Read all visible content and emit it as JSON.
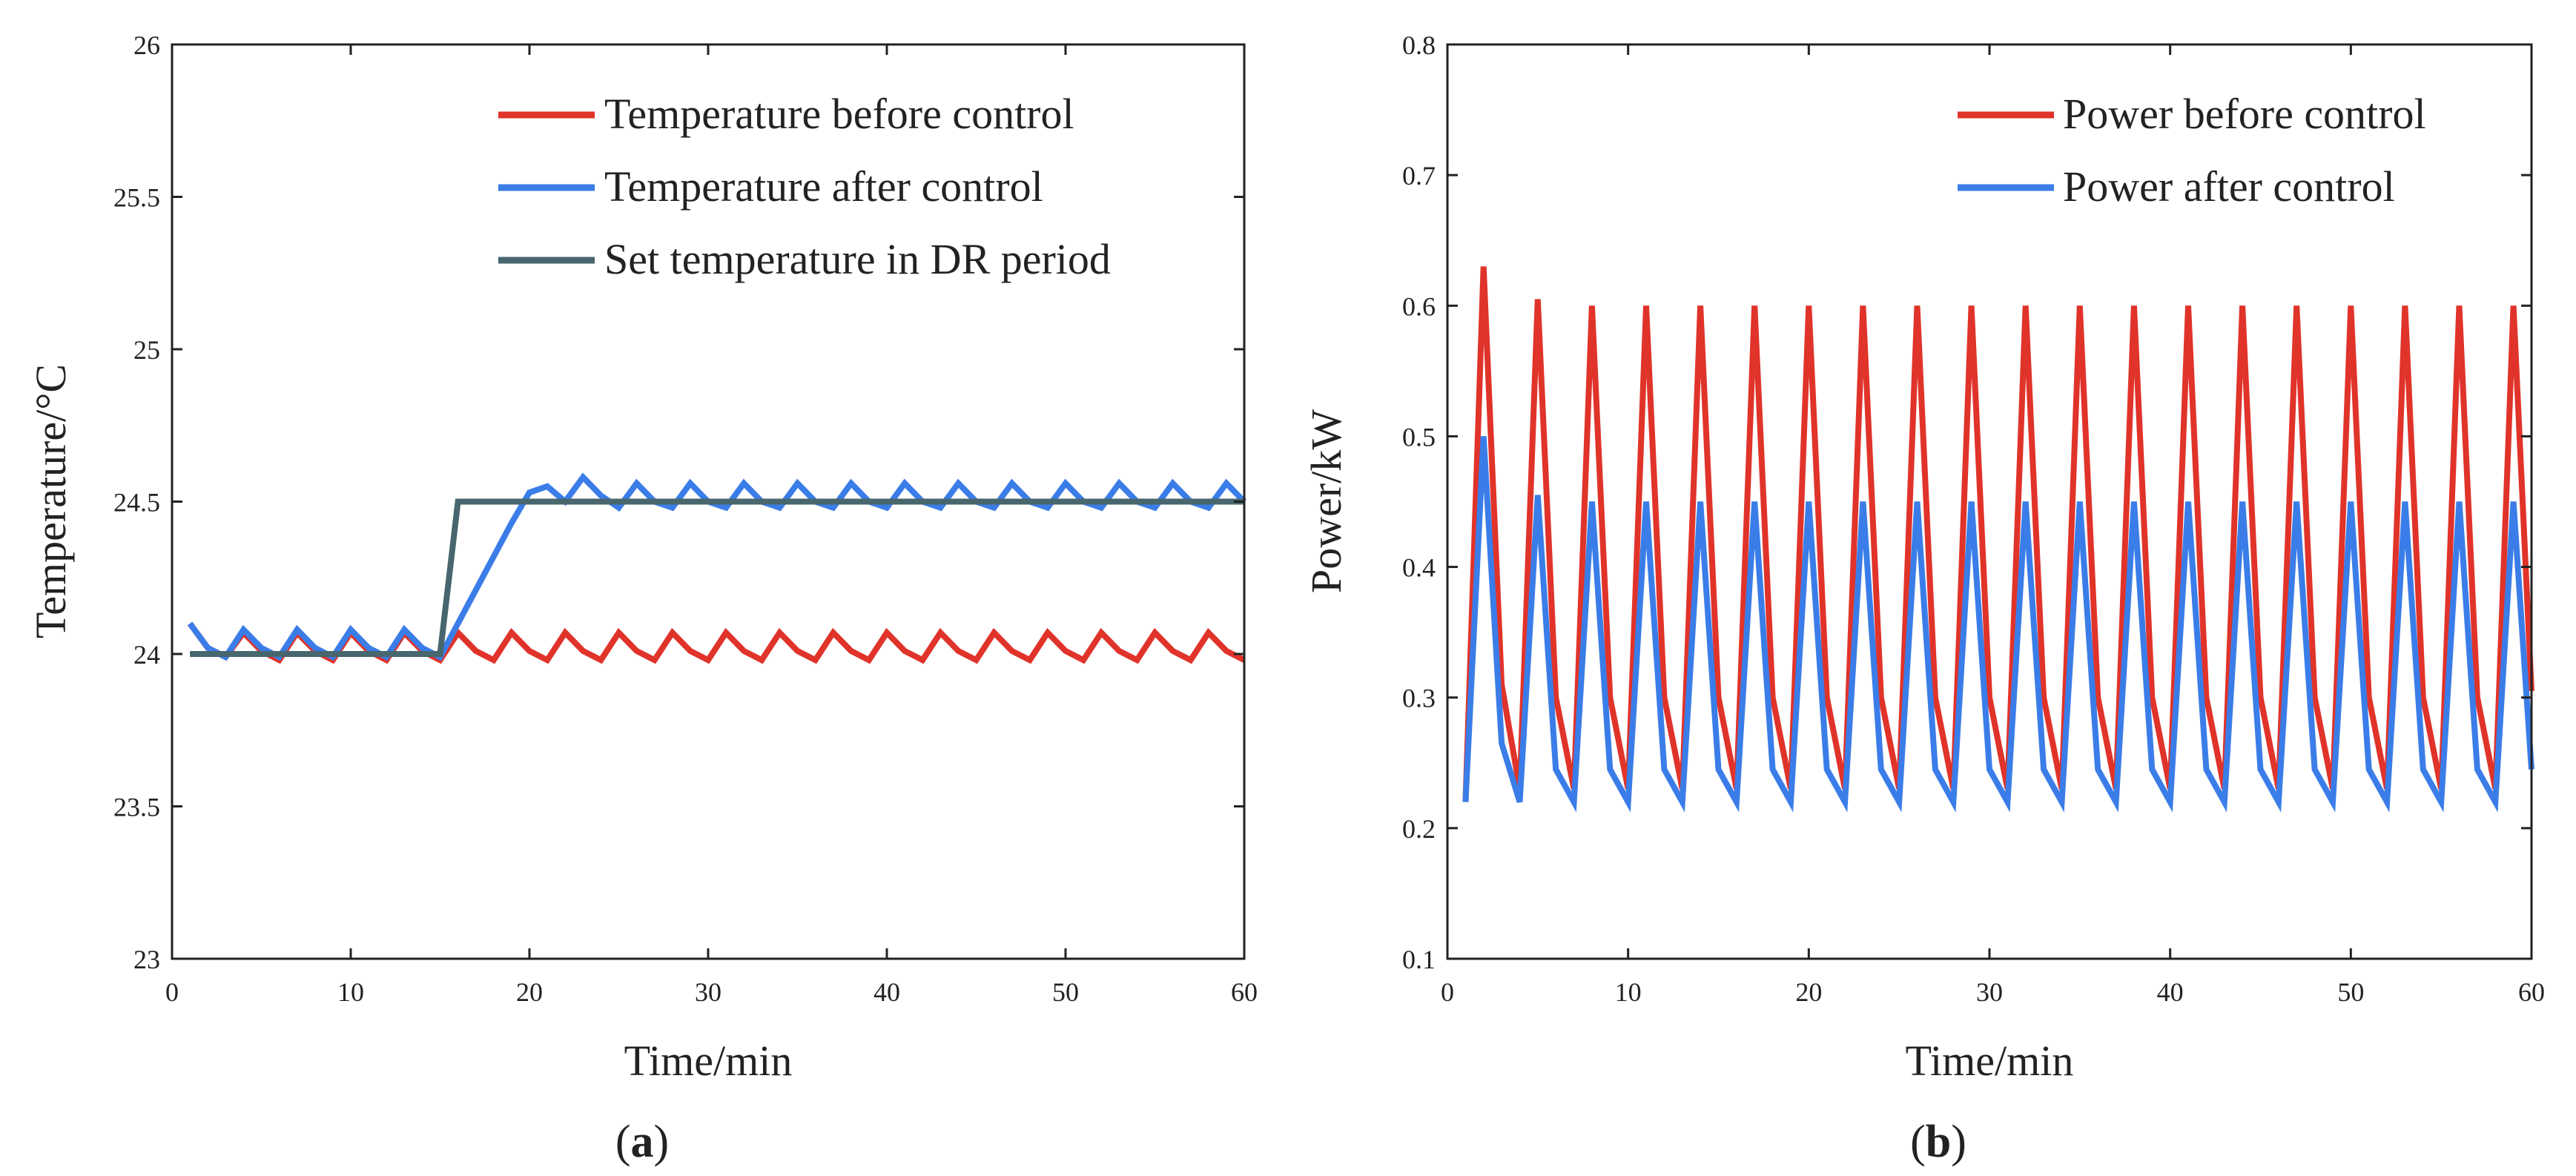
{
  "colors": {
    "red": "#e0332a",
    "blue": "#3b7de8",
    "slate": "#47666e",
    "axis": "#222222"
  },
  "chart_data": [
    {
      "type": "line",
      "panel": "a",
      "caption": {
        "open": "(",
        "letter": "a",
        "close": ")"
      },
      "xlabel": "Time/min",
      "ylabel": "Temperature/°C",
      "xlim": [
        0,
        60
      ],
      "ylim": [
        23,
        26
      ],
      "xticks": [
        0,
        10,
        20,
        30,
        40,
        50,
        60
      ],
      "yticks": [
        23,
        23.5,
        24,
        24.5,
        25,
        25.5,
        26
      ],
      "ytick_labels": [
        "23",
        "23.5",
        "24",
        "24.5",
        "25",
        "25.5",
        "26"
      ],
      "legend_position": "top-right",
      "series": [
        {
          "name": "Temperature before control",
          "color": "red",
          "x": [
            1,
            2,
            3,
            4,
            5,
            6,
            7,
            8,
            9,
            10,
            11,
            12,
            13,
            14,
            15,
            16,
            17,
            18,
            19,
            20,
            21,
            22,
            23,
            24,
            25,
            26,
            27,
            28,
            29,
            30,
            31,
            32,
            33,
            34,
            35,
            36,
            37,
            38,
            39,
            40,
            41,
            42,
            43,
            44,
            45,
            46,
            47,
            48,
            49,
            50,
            51,
            52,
            53,
            54,
            55,
            56,
            57,
            58,
            59,
            60
          ],
          "y": [
            24.1,
            24.02,
            23.99,
            24.07,
            24.01,
            23.98,
            24.07,
            24.01,
            23.98,
            24.07,
            24.01,
            23.98,
            24.07,
            24.01,
            23.98,
            24.07,
            24.01,
            23.98,
            24.07,
            24.01,
            23.98,
            24.07,
            24.01,
            23.98,
            24.07,
            24.01,
            23.98,
            24.07,
            24.01,
            23.98,
            24.07,
            24.01,
            23.98,
            24.07,
            24.01,
            23.98,
            24.07,
            24.01,
            23.98,
            24.07,
            24.01,
            23.98,
            24.07,
            24.01,
            23.98,
            24.07,
            24.01,
            23.98,
            24.07,
            24.01,
            23.98,
            24.07,
            24.01,
            23.98,
            24.07,
            24.01,
            23.98,
            24.07,
            24.01,
            23.98
          ]
        },
        {
          "name": "Temperature after control",
          "color": "blue",
          "x": [
            1,
            2,
            3,
            4,
            5,
            6,
            7,
            8,
            9,
            10,
            11,
            12,
            13,
            14,
            15,
            16,
            17,
            18,
            19,
            20,
            21,
            22,
            23,
            24,
            25,
            26,
            27,
            28,
            29,
            30,
            31,
            32,
            33,
            34,
            35,
            36,
            37,
            38,
            39,
            40,
            41,
            42,
            43,
            44,
            45,
            46,
            47,
            48,
            49,
            50,
            51,
            52,
            53,
            54,
            55,
            56,
            57,
            58,
            59,
            60
          ],
          "y": [
            24.1,
            24.02,
            23.99,
            24.08,
            24.02,
            23.99,
            24.08,
            24.02,
            23.99,
            24.08,
            24.02,
            23.99,
            24.08,
            24.02,
            23.99,
            24.1,
            24.21,
            24.32,
            24.43,
            24.53,
            24.55,
            24.5,
            24.58,
            24.52,
            24.48,
            24.56,
            24.5,
            24.48,
            24.56,
            24.5,
            24.48,
            24.56,
            24.5,
            24.48,
            24.56,
            24.5,
            24.48,
            24.56,
            24.5,
            24.48,
            24.56,
            24.5,
            24.48,
            24.56,
            24.5,
            24.48,
            24.56,
            24.5,
            24.48,
            24.56,
            24.5,
            24.48,
            24.56,
            24.5,
            24.48,
            24.56,
            24.5,
            24.48,
            24.56,
            24.5
          ]
        },
        {
          "name": "Set temperature in DR period",
          "color": "slate",
          "x": [
            1,
            15,
            16,
            60
          ],
          "y": [
            24,
            24,
            24.5,
            24.5
          ]
        }
      ]
    },
    {
      "type": "line",
      "panel": "b",
      "caption": {
        "open": "(",
        "letter": "b",
        "close": ")"
      },
      "xlabel": "Time/min",
      "ylabel": "Power/kW",
      "xlim": [
        0,
        60
      ],
      "ylim": [
        0.1,
        0.8
      ],
      "xticks": [
        0,
        10,
        20,
        30,
        40,
        50,
        60
      ],
      "yticks": [
        0.1,
        0.2,
        0.3,
        0.4,
        0.5,
        0.6,
        0.7,
        0.8
      ],
      "ytick_labels": [
        "0.1",
        "0.2",
        "0.3",
        "0.4",
        "0.5",
        "0.6",
        "0.7",
        "0.8"
      ],
      "legend_position": "top-right",
      "series": [
        {
          "name": "Power before control",
          "color": "red",
          "x": [
            1,
            2,
            3,
            4,
            5,
            6,
            7,
            8,
            9,
            10,
            11,
            12,
            13,
            14,
            15,
            16,
            17,
            18,
            19,
            20,
            21,
            22,
            23,
            24,
            25,
            26,
            27,
            28,
            29,
            30,
            31,
            32,
            33,
            34,
            35,
            36,
            37,
            38,
            39,
            40,
            41,
            42,
            43,
            44,
            45,
            46,
            47,
            48,
            49,
            50,
            51,
            52,
            53,
            54,
            55,
            56,
            57,
            58,
            59,
            60
          ],
          "y": [
            0.22,
            0.63,
            0.31,
            0.23,
            0.605,
            0.3,
            0.23,
            0.6,
            0.3,
            0.23,
            0.6,
            0.3,
            0.23,
            0.6,
            0.3,
            0.23,
            0.6,
            0.3,
            0.23,
            0.6,
            0.3,
            0.23,
            0.6,
            0.3,
            0.23,
            0.6,
            0.3,
            0.23,
            0.6,
            0.3,
            0.23,
            0.6,
            0.3,
            0.23,
            0.6,
            0.3,
            0.23,
            0.6,
            0.3,
            0.23,
            0.6,
            0.3,
            0.23,
            0.6,
            0.3,
            0.23,
            0.6,
            0.3,
            0.23,
            0.6,
            0.3,
            0.23,
            0.6,
            0.3,
            0.23,
            0.6,
            0.3,
            0.23,
            0.6,
            0.305
          ]
        },
        {
          "name": "Power after control",
          "color": "blue",
          "x": [
            1,
            2,
            3,
            4,
            5,
            6,
            7,
            8,
            9,
            10,
            11,
            12,
            13,
            14,
            15,
            16,
            17,
            18,
            19,
            20,
            21,
            22,
            23,
            24,
            25,
            26,
            27,
            28,
            29,
            30,
            31,
            32,
            33,
            34,
            35,
            36,
            37,
            38,
            39,
            40,
            41,
            42,
            43,
            44,
            45,
            46,
            47,
            48,
            49,
            50,
            51,
            52,
            53,
            54,
            55,
            56,
            57,
            58,
            59,
            60
          ],
          "y": [
            0.22,
            0.5,
            0.265,
            0.22,
            0.455,
            0.245,
            0.22,
            0.45,
            0.245,
            0.22,
            0.45,
            0.245,
            0.22,
            0.45,
            0.245,
            0.22,
            0.45,
            0.245,
            0.22,
            0.45,
            0.245,
            0.22,
            0.45,
            0.245,
            0.22,
            0.45,
            0.245,
            0.22,
            0.45,
            0.245,
            0.22,
            0.45,
            0.245,
            0.22,
            0.45,
            0.245,
            0.22,
            0.45,
            0.245,
            0.22,
            0.45,
            0.245,
            0.22,
            0.45,
            0.245,
            0.22,
            0.45,
            0.245,
            0.22,
            0.45,
            0.245,
            0.22,
            0.45,
            0.245,
            0.22,
            0.45,
            0.245,
            0.22,
            0.45,
            0.245
          ]
        }
      ]
    }
  ]
}
